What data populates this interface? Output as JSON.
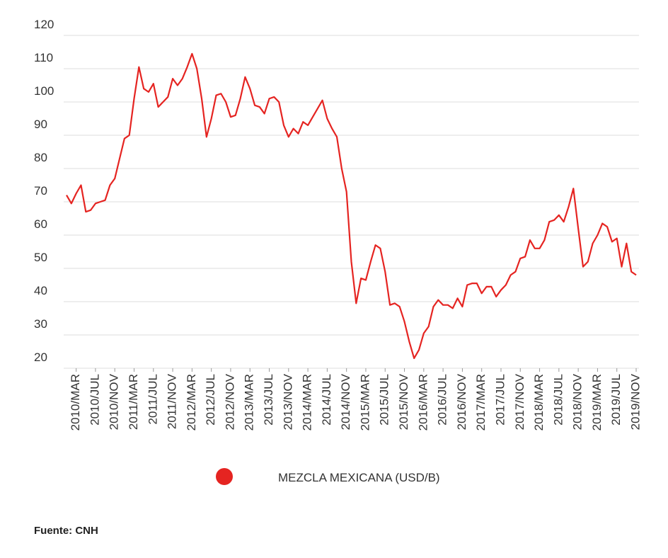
{
  "chart_data": {
    "type": "line",
    "categories": [
      null,
      null,
      "2010/MAR",
      null,
      null,
      null,
      "2010/JUL",
      null,
      null,
      null,
      "2010/NOV",
      null,
      null,
      null,
      "2011/MAR",
      null,
      null,
      null,
      "2011/JUL",
      null,
      null,
      null,
      "2011/NOV",
      null,
      null,
      null,
      "2012/MAR",
      null,
      null,
      null,
      "2012/JUL",
      null,
      null,
      null,
      "2012/NOV",
      null,
      null,
      null,
      "2013/MAR",
      null,
      null,
      null,
      "2013/JUL",
      null,
      null,
      null,
      "2013/NOV",
      null,
      null,
      null,
      "2014/MAR",
      null,
      null,
      null,
      "2014/JUL",
      null,
      null,
      null,
      "2014/NOV",
      null,
      null,
      null,
      "2015/MAR",
      null,
      null,
      null,
      "2015/JUL",
      null,
      null,
      null,
      "2015/NOV",
      null,
      null,
      null,
      "2016/MAR",
      null,
      null,
      null,
      "2016/JUL",
      null,
      null,
      null,
      "2016/NOV",
      null,
      null,
      null,
      "2017/MAR",
      null,
      null,
      null,
      "2017/JUL",
      null,
      null,
      null,
      "2017/NOV",
      null,
      null,
      null,
      "2018/MAR",
      null,
      null,
      null,
      "2018/JUL",
      null,
      null,
      null,
      "2018/NOV",
      null,
      null,
      null,
      "2019/MAR",
      null,
      null,
      null,
      "2019/JUL",
      null,
      null,
      null,
      "2019/NOV"
    ],
    "series": [
      {
        "name": "MEZCLA MEXICANA (USD/B)",
        "color": "#e52421",
        "values": [
          72,
          69.5,
          72.5,
          75,
          67,
          67.5,
          69.5,
          70,
          70.5,
          75,
          77,
          83,
          89,
          90,
          101,
          110.5,
          104,
          103,
          105.5,
          98.5,
          100,
          101.5,
          107,
          105,
          107,
          110.5,
          114.5,
          110,
          101,
          89.5,
          95,
          102,
          102.5,
          100,
          95.5,
          96,
          101,
          107.5,
          104,
          99,
          98.5,
          96.5,
          101,
          101.5,
          100,
          93,
          89.5,
          92,
          90.5,
          94,
          93,
          95.5,
          98,
          100.5,
          95,
          92,
          89.5,
          80,
          73,
          52,
          39.5,
          47,
          46.5,
          52,
          57,
          56,
          49,
          39,
          39.5,
          38.5,
          34,
          28,
          23,
          25.5,
          30.5,
          32.5,
          38.5,
          40.5,
          39,
          39,
          38,
          41,
          38.5,
          45,
          45.5,
          45.5,
          42.5,
          44.5,
          44.5,
          41.5,
          43.5,
          45,
          48,
          49,
          53,
          53.5,
          58.5,
          56,
          56,
          58.5,
          64,
          64.5,
          66,
          64,
          68.5,
          74,
          62,
          50.5,
          52,
          57.5,
          60,
          63.5,
          62.5,
          58,
          59,
          50.5,
          57.5,
          49,
          48
        ]
      }
    ],
    "ylim": [
      20,
      120
    ],
    "yticks": [
      20,
      30,
      40,
      50,
      60,
      70,
      80,
      90,
      100,
      110,
      120
    ],
    "grid": true,
    "legend": "bottom",
    "source": "Fuente: CNH"
  }
}
